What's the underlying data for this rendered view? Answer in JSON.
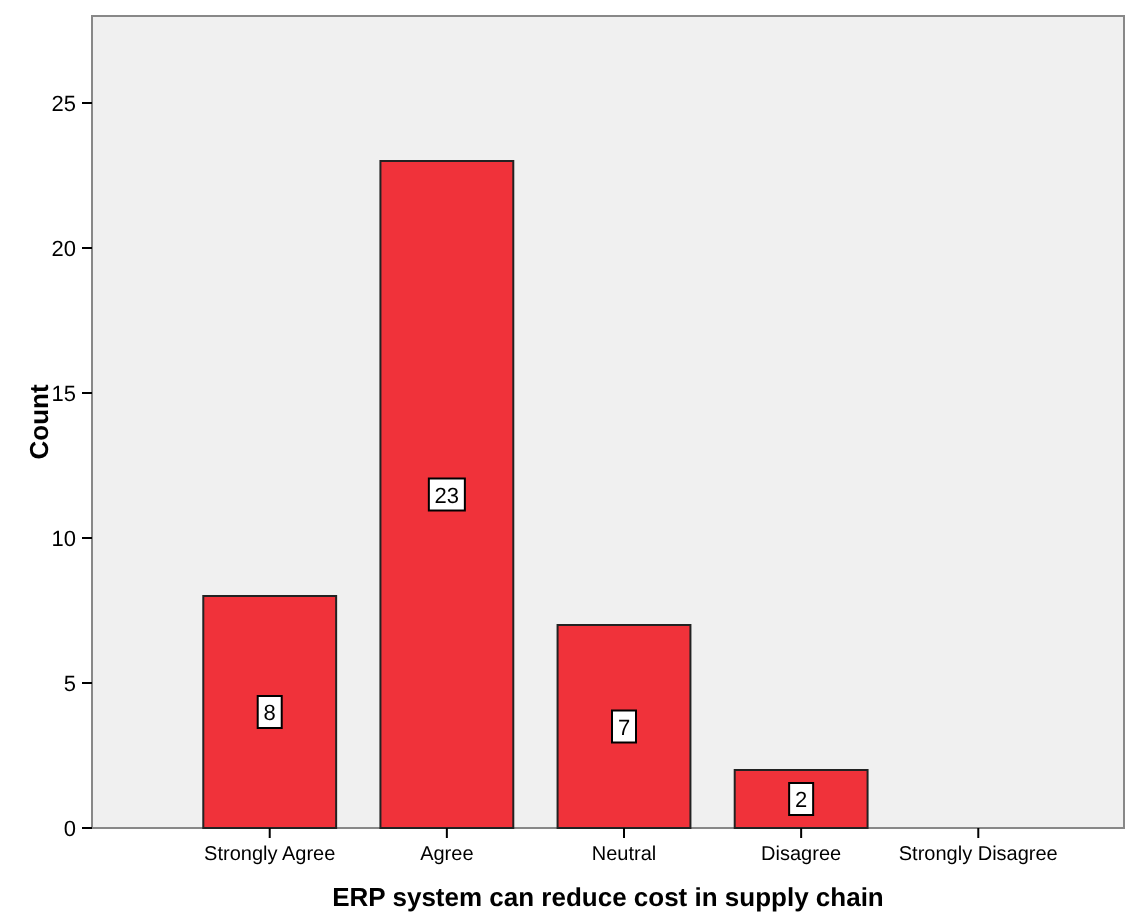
{
  "chart_data": {
    "type": "bar",
    "xlabel": "ERP system can reduce cost in supply chain",
    "ylabel": "Count",
    "categories": [
      "Strongly Agree",
      "Agree",
      "Neutral",
      "Disagree",
      "Strongly Disagree"
    ],
    "values": [
      8,
      23,
      7,
      2,
      0
    ],
    "value_labels": [
      "8",
      "23",
      "7",
      "2",
      null
    ],
    "color": "#f0323a",
    "ylim": [
      0,
      28
    ],
    "yticks": [
      0,
      5,
      10,
      15,
      20,
      25
    ],
    "grid": false
  }
}
